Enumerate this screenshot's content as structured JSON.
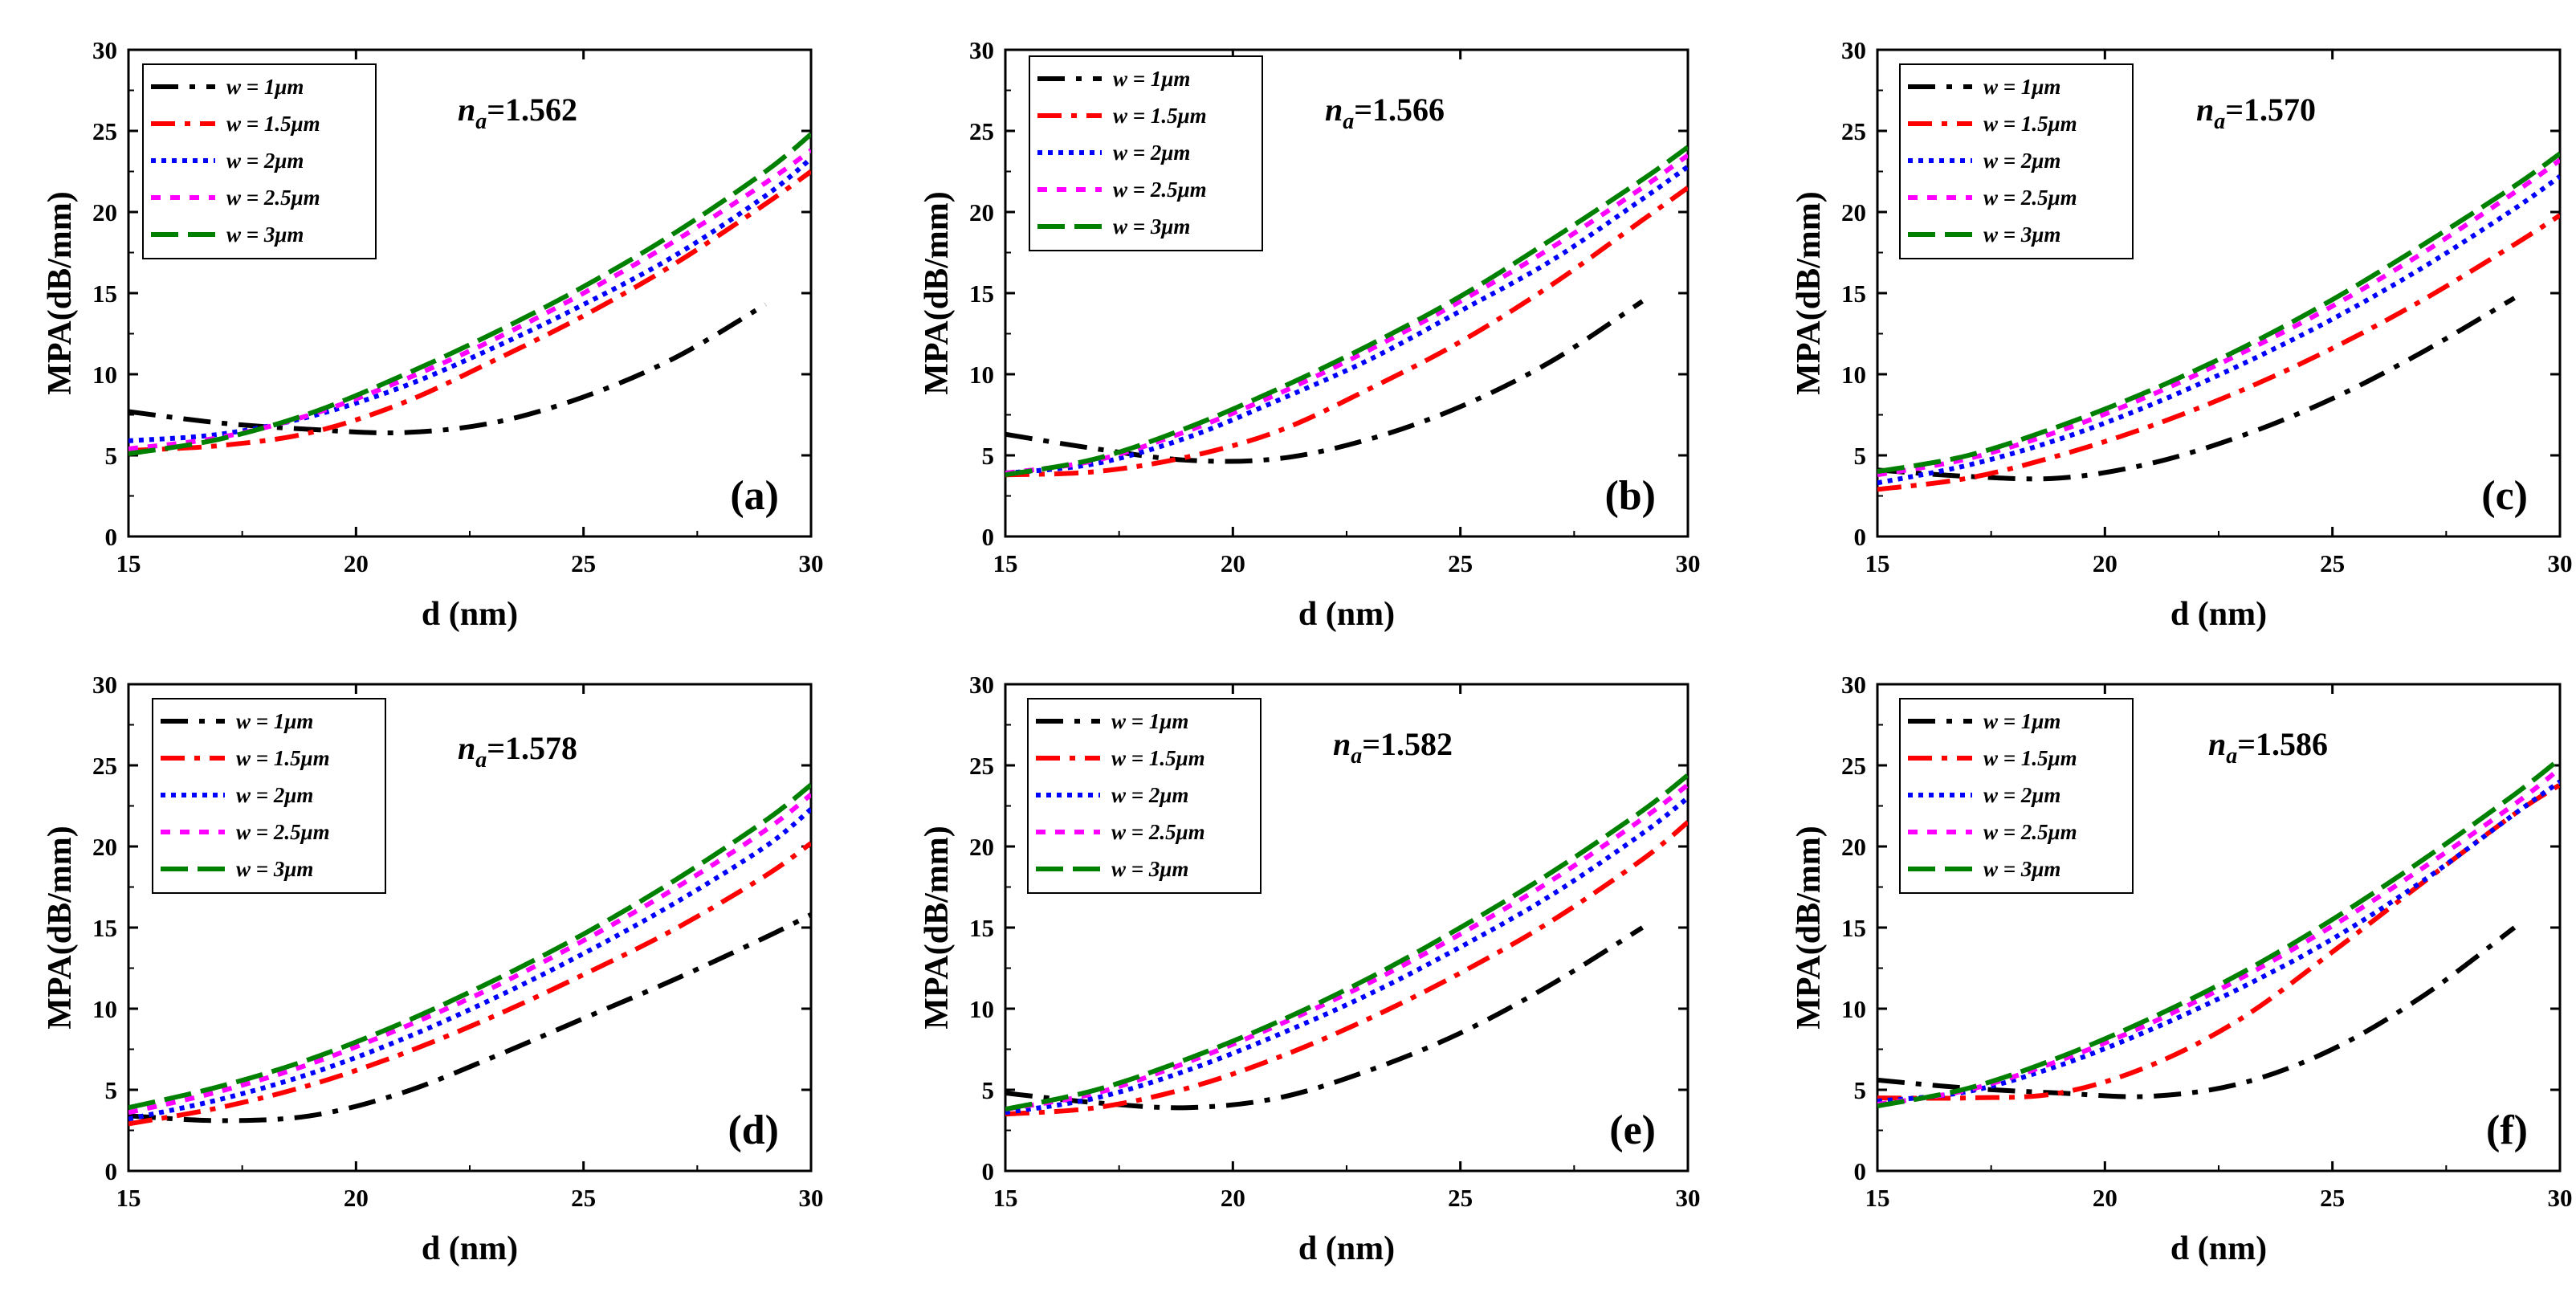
{
  "figure": {
    "type": "multi-panel line chart grid"
  },
  "legend_entries": [
    "w = 1μm",
    "w = 1.5μm",
    "w = 2μm",
    "w = 2.5μm",
    "w = 3μm"
  ],
  "series_style": [
    {
      "name": "w = 1μm",
      "color": "#000000",
      "dash": "34 14 7 14"
    },
    {
      "name": "w = 1.5μm",
      "color": "#ff0000",
      "dash": "30 12 7 12"
    },
    {
      "name": "w = 2μm",
      "color": "#0000ff",
      "dash": "6 7"
    },
    {
      "name": "w = 2.5μm",
      "color": "#ff00ff",
      "dash": "12 12"
    },
    {
      "name": "w = 3μm",
      "color": "#008000",
      "dash": "34 12"
    }
  ],
  "chart_data": [
    {
      "type": "line",
      "panel_label": "(a)",
      "annotation": "=1.562",
      "title": "",
      "xlabel": "d (nm)",
      "ylabel": "MPA(dB/mm)",
      "xlim": [
        15,
        30
      ],
      "ylim": [
        0,
        30
      ],
      "x_ticks": [
        15,
        20,
        25,
        30
      ],
      "y_ticks": [
        0,
        5,
        10,
        15,
        20,
        25,
        30
      ],
      "x": [
        15,
        17,
        19,
        21,
        23,
        25,
        27,
        29,
        30
      ],
      "series": [
        {
          "name": "w = 1μm",
          "values": [
            7.7,
            7.0,
            6.6,
            6.4,
            7.0,
            8.6,
            11.0,
            14.3,
            null
          ]
        },
        {
          "name": "w = 1.5μm",
          "values": [
            5.3,
            5.6,
            6.4,
            8.2,
            10.8,
            13.6,
            16.8,
            20.5,
            22.5
          ]
        },
        {
          "name": "w = 2μm",
          "values": [
            5.9,
            6.3,
            7.4,
            9.2,
            11.6,
            14.3,
            17.3,
            21.0,
            23.3
          ]
        },
        {
          "name": "w = 2.5μm",
          "values": [
            5.4,
            6.1,
            7.5,
            9.6,
            12.1,
            15.0,
            18.2,
            21.8,
            23.8
          ]
        },
        {
          "name": "w = 3μm",
          "values": [
            5.1,
            6.0,
            7.6,
            9.9,
            12.5,
            15.4,
            18.7,
            22.5,
            24.8
          ]
        }
      ]
    },
    {
      "type": "line",
      "panel_label": "(b)",
      "annotation": "=1.566",
      "title": "",
      "xlabel": "d (nm)",
      "ylabel": "MPA(dB/mm)",
      "xlim": [
        15,
        30
      ],
      "ylim": [
        0,
        30
      ],
      "x_ticks": [
        15,
        20,
        25,
        30
      ],
      "y_ticks": [
        0,
        5,
        10,
        15,
        20,
        25,
        30
      ],
      "x": [
        15,
        17,
        19,
        21,
        23,
        25,
        27,
        29,
        30
      ],
      "series": [
        {
          "name": "w = 1μm",
          "values": [
            6.3,
            5.4,
            4.7,
            4.8,
            6.0,
            8.0,
            10.8,
            14.5,
            null
          ]
        },
        {
          "name": "w = 1.5μm",
          "values": [
            3.8,
            4.0,
            4.9,
            6.5,
            9.1,
            12.0,
            15.5,
            19.5,
            21.5
          ]
        },
        {
          "name": "w = 2μm",
          "values": [
            3.9,
            4.5,
            6.1,
            8.4,
            10.9,
            13.9,
            17.0,
            20.8,
            22.8
          ]
        },
        {
          "name": "w = 2.5μm",
          "values": [
            3.9,
            4.7,
            6.5,
            8.8,
            11.5,
            14.5,
            17.8,
            21.5,
            23.5
          ]
        },
        {
          "name": "w = 3μm",
          "values": [
            3.8,
            4.8,
            6.7,
            9.1,
            11.8,
            14.8,
            18.3,
            22.0,
            24.0
          ]
        }
      ]
    },
    {
      "type": "line",
      "panel_label": "(c)",
      "annotation": "=1.570",
      "title": "",
      "xlabel": "d (nm)",
      "ylabel": "MPA(dB/mm)",
      "xlim": [
        15,
        30
      ],
      "ylim": [
        0,
        30
      ],
      "x_ticks": [
        15,
        20,
        25,
        30
      ],
      "y_ticks": [
        0,
        5,
        10,
        15,
        20,
        25,
        30
      ],
      "x": [
        15,
        17,
        19,
        21,
        23,
        25,
        27,
        29,
        30
      ],
      "series": [
        {
          "name": "w = 1μm",
          "values": [
            4.1,
            3.7,
            3.6,
            4.5,
            6.2,
            8.5,
            11.4,
            14.7,
            null
          ]
        },
        {
          "name": "w = 1.5μm",
          "values": [
            2.9,
            3.6,
            5.0,
            6.8,
            9.0,
            11.6,
            14.6,
            18.0,
            19.8
          ]
        },
        {
          "name": "w = 2μm",
          "values": [
            3.3,
            4.4,
            6.0,
            8.1,
            10.6,
            13.4,
            16.6,
            20.2,
            22.2
          ]
        },
        {
          "name": "w = 2.5μm",
          "values": [
            3.8,
            4.8,
            6.5,
            8.7,
            11.3,
            14.2,
            17.5,
            21.2,
            23.2
          ]
        },
        {
          "name": "w = 3μm",
          "values": [
            4.0,
            5.0,
            6.8,
            9.0,
            11.6,
            14.6,
            18.0,
            21.6,
            23.6
          ]
        }
      ]
    },
    {
      "type": "line",
      "panel_label": "(d)",
      "annotation": "=1.578",
      "title": "",
      "xlabel": "d (nm)",
      "ylabel": "MPA(dB/mm)",
      "xlim": [
        15,
        30
      ],
      "ylim": [
        0,
        30
      ],
      "x_ticks": [
        15,
        20,
        25,
        30
      ],
      "y_ticks": [
        0,
        5,
        10,
        15,
        20,
        25,
        30
      ],
      "x": [
        15,
        17,
        19,
        21,
        23,
        25,
        27,
        29,
        30
      ],
      "series": [
        {
          "name": "w = 1μm",
          "values": [
            3.4,
            3.1,
            3.4,
            4.8,
            7.0,
            9.4,
            11.8,
            14.4,
            15.8
          ]
        },
        {
          "name": "w = 1.5μm",
          "values": [
            2.9,
            3.9,
            5.3,
            7.2,
            9.5,
            12.1,
            14.9,
            18.2,
            20.2
          ]
        },
        {
          "name": "w = 2μm",
          "values": [
            3.2,
            4.4,
            6.0,
            8.1,
            10.6,
            13.4,
            16.5,
            20.0,
            22.3
          ]
        },
        {
          "name": "w = 2.5μm",
          "values": [
            3.6,
            4.9,
            6.6,
            8.8,
            11.3,
            14.2,
            17.4,
            21.0,
            23.2
          ]
        },
        {
          "name": "w = 3μm",
          "values": [
            3.9,
            5.2,
            6.9,
            9.1,
            11.7,
            14.6,
            17.9,
            21.6,
            23.8
          ]
        }
      ]
    },
    {
      "type": "line",
      "panel_label": "(e)",
      "annotation": "=1.582",
      "title": "",
      "xlabel": "d (nm)",
      "ylabel": "MPA(dB/mm)",
      "xlim": [
        15,
        30
      ],
      "ylim": [
        0,
        30
      ],
      "x_ticks": [
        15,
        20,
        25,
        30
      ],
      "y_ticks": [
        0,
        5,
        10,
        15,
        20,
        25,
        30
      ],
      "x": [
        15,
        17,
        19,
        21,
        23,
        25,
        27,
        29,
        30
      ],
      "series": [
        {
          "name": "w = 1μm",
          "values": [
            4.8,
            4.2,
            3.9,
            4.5,
            6.2,
            8.5,
            11.5,
            15.0,
            null
          ]
        },
        {
          "name": "w = 1.5μm",
          "values": [
            3.5,
            3.9,
            5.1,
            7.0,
            9.4,
            12.2,
            15.4,
            19.2,
            21.5
          ]
        },
        {
          "name": "w = 2μm",
          "values": [
            3.6,
            4.5,
            6.2,
            8.4,
            10.9,
            13.8,
            17.0,
            20.8,
            23.0
          ]
        },
        {
          "name": "w = 2.5μm",
          "values": [
            3.8,
            4.8,
            6.7,
            9.0,
            11.6,
            14.6,
            17.9,
            21.7,
            23.8
          ]
        },
        {
          "name": "w = 3μm",
          "values": [
            3.8,
            5.0,
            6.9,
            9.2,
            11.9,
            15.0,
            18.4,
            22.2,
            24.4
          ]
        }
      ]
    },
    {
      "type": "line",
      "panel_label": "(f)",
      "annotation": "=1.586",
      "title": "",
      "xlabel": "d (nm)",
      "ylabel": "MPA(dB/mm)",
      "xlim": [
        15,
        30
      ],
      "ylim": [
        0,
        30
      ],
      "x_ticks": [
        15,
        20,
        25,
        30
      ],
      "y_ticks": [
        0,
        5,
        10,
        15,
        20,
        25,
        30
      ],
      "x": [
        15,
        17,
        19,
        21,
        23,
        25,
        27,
        29,
        30
      ],
      "series": [
        {
          "name": "w = 1μm",
          "values": [
            5.6,
            5.1,
            4.8,
            4.6,
            5.4,
            7.5,
            10.8,
            15.0,
            null
          ]
        },
        {
          "name": "w = 1.5μm",
          "values": [
            4.5,
            4.5,
            4.8,
            6.5,
            9.4,
            13.5,
            17.8,
            22.0,
            23.8
          ]
        },
        {
          "name": "w = 2μm",
          "values": [
            4.3,
            4.9,
            6.5,
            8.7,
            11.3,
            14.3,
            17.9,
            22.0,
            24.0
          ]
        },
        {
          "name": "w = 2.5μm",
          "values": [
            4.1,
            5.0,
            6.8,
            9.1,
            11.9,
            15.1,
            18.7,
            22.6,
            24.8
          ]
        },
        {
          "name": "w = 3μm",
          "values": [
            4.0,
            5.1,
            7.0,
            9.4,
            12.2,
            15.5,
            19.2,
            23.2,
            25.4
          ]
        }
      ]
    }
  ]
}
